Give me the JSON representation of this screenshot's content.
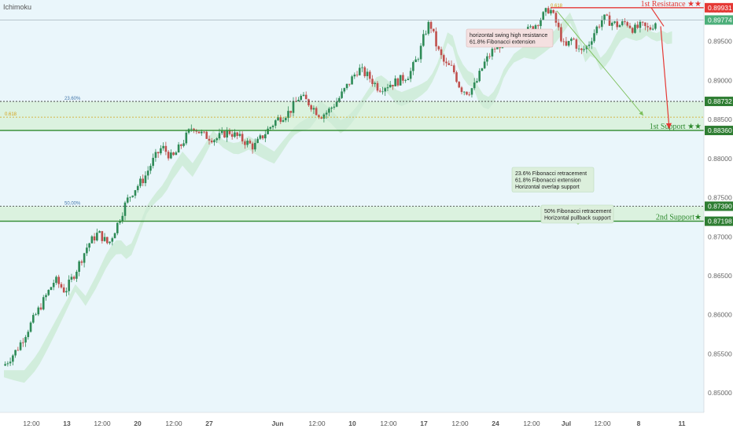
{
  "indicator_label": "Ichimoku",
  "colors": {
    "background": "#eaf6fb",
    "candle_up": "#2e8b57",
    "candle_down": "#c0504d",
    "cloud": "#cdebd6",
    "support_line": "#2f8a2f",
    "fib_dotted": "#333333",
    "zone_fill": "#d6f0d6",
    "resistance": "#e53935",
    "arrow_green": "#7cbf5a",
    "tag_support": "#2e7d32",
    "tag_resistance": "#e53935",
    "tag_current": "#4caf7a",
    "fib_0618": "#d4a017"
  },
  "chart_data": {
    "type": "candlestick",
    "symbol_hint": "",
    "y_axis": {
      "ticks": [
        "0.89900",
        "0.89500",
        "0.89000",
        "0.88500",
        "0.88000",
        "0.87500",
        "0.87000",
        "0.86500",
        "0.86000",
        "0.85500",
        "0.85000"
      ],
      "range": [
        0.8475,
        0.9003
      ]
    },
    "x_axis": {
      "ticks": [
        "12:00",
        "13",
        "12:00",
        "20",
        "12:00",
        "27",
        "Jun",
        "12:00",
        "10",
        "12:00",
        "17",
        "12:00",
        "24",
        "12:00",
        "Jul",
        "12:00",
        "8",
        "11"
      ]
    },
    "close_path": [
      [
        0,
        0.8535
      ],
      [
        5,
        0.8555
      ],
      [
        10,
        0.8585
      ],
      [
        15,
        0.8615
      ],
      [
        20,
        0.8645
      ],
      [
        24,
        0.863
      ],
      [
        28,
        0.8655
      ],
      [
        33,
        0.869
      ],
      [
        37,
        0.8705
      ],
      [
        41,
        0.869
      ],
      [
        45,
        0.872
      ],
      [
        48,
        0.8745
      ],
      [
        51,
        0.876
      ],
      [
        55,
        0.8775
      ],
      [
        58,
        0.8795
      ],
      [
        62,
        0.8815
      ],
      [
        66,
        0.88
      ],
      [
        70,
        0.882
      ],
      [
        74,
        0.8842
      ],
      [
        78,
        0.883
      ],
      [
        83,
        0.8825
      ],
      [
        88,
        0.8835
      ],
      [
        93,
        0.8825
      ],
      [
        98,
        0.8815
      ],
      [
        103,
        0.8835
      ],
      [
        107,
        0.885
      ],
      [
        112,
        0.886
      ],
      [
        116,
        0.888
      ],
      [
        120,
        0.887
      ],
      [
        124,
        0.8855
      ],
      [
        127,
        0.886
      ],
      [
        131,
        0.8875
      ],
      [
        135,
        0.8895
      ],
      [
        139,
        0.8915
      ],
      [
        143,
        0.8905
      ],
      [
        147,
        0.889
      ],
      [
        151,
        0.8895
      ],
      [
        155,
        0.89
      ],
      [
        159,
        0.8908
      ],
      [
        163,
        0.8935
      ],
      [
        165,
        0.896
      ],
      [
        167,
        0.8975
      ],
      [
        170,
        0.894
      ],
      [
        173,
        0.892
      ],
      [
        176,
        0.8915
      ],
      [
        179,
        0.889
      ],
      [
        182,
        0.8885
      ],
      [
        185,
        0.8895
      ],
      [
        188,
        0.892
      ],
      [
        192,
        0.894
      ],
      [
        196,
        0.895
      ],
      [
        200,
        0.895
      ],
      [
        204,
        0.896
      ],
      [
        208,
        0.897
      ],
      [
        212,
        0.8985
      ],
      [
        214,
        0.8993
      ],
      [
        217,
        0.897
      ],
      [
        220,
        0.894
      ],
      [
        223,
        0.8955
      ],
      [
        226,
        0.8935
      ],
      [
        229,
        0.8945
      ],
      [
        232,
        0.8965
      ],
      [
        235,
        0.898
      ],
      [
        238,
        0.8975
      ],
      [
        241,
        0.897
      ],
      [
        244,
        0.8975
      ],
      [
        247,
        0.8965
      ],
      [
        250,
        0.897
      ],
      [
        253,
        0.8965
      ],
      [
        256,
        0.8977
      ]
    ],
    "levels": [
      {
        "name": "1st Resistance",
        "price": "0.89931",
        "value": 0.89931,
        "label": "1st Resistance ★★",
        "style": "solid-red"
      },
      {
        "name": "current",
        "price": "0.89774",
        "value": 0.89774,
        "style": "thin-gray"
      },
      {
        "name": "fib-23.6",
        "price": "0.88732",
        "value": 0.88732,
        "fib_label": "23.60%",
        "style": "dotted"
      },
      {
        "name": "fib-0.618",
        "value": 0.8853,
        "fib_label": "0.618",
        "style": "dotted-gold"
      },
      {
        "name": "1st Support",
        "price": "0.88360",
        "value": 0.8836,
        "label": "1st Support ★★",
        "style": "solid-green"
      },
      {
        "name": "fib-50",
        "price": "0.87390",
        "value": 0.8739,
        "fib_label": "50.00%",
        "style": "dotted"
      },
      {
        "name": "2nd Support",
        "price": "0.87198",
        "value": 0.87198,
        "label": "2nd Support★",
        "style": "solid-green"
      }
    ],
    "annotations": {
      "resistance_note": [
        "horizontal swing high resistance",
        "61.8% Fibonacci extension"
      ],
      "resistance_fib": "0.618",
      "support1_note": [
        "23.6% Fibonacci retracement",
        "61.8% Fibonacci extension",
        "Horizontal overlap support"
      ],
      "support2_note": [
        "50% Fibonacci retracement",
        "Horizontal pullback support"
      ]
    }
  }
}
